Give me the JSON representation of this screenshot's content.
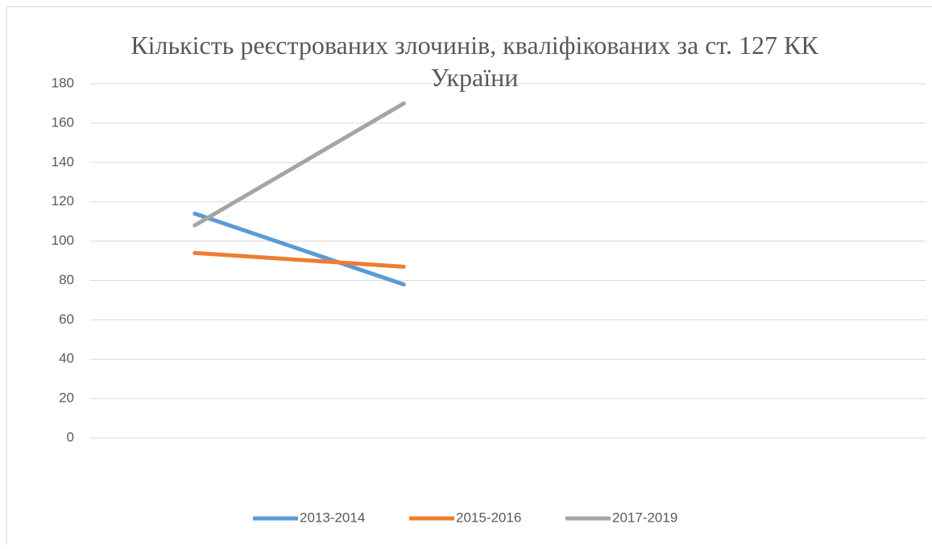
{
  "chart_data": {
    "type": "line",
    "title": "Кількість реєстрованих злочинів, кваліфікованих за ст. 127 КК України",
    "categories": [
      null,
      null,
      null,
      null
    ],
    "series": [
      {
        "name": "2013-2014",
        "color": "#5b9bd5",
        "values": [
          114,
          78,
          null,
          null
        ]
      },
      {
        "name": "2015-2016",
        "color": "#ed7d31",
        "values": [
          94,
          87,
          null,
          null
        ]
      },
      {
        "name": "2017-2019",
        "color": "#a5a5a5",
        "values": [
          108,
          170,
          null,
          null
        ]
      }
    ],
    "ylim": [
      0,
      180
    ],
    "yticks": [
      0,
      20,
      40,
      60,
      80,
      100,
      120,
      140,
      160,
      180
    ],
    "grid": true,
    "legend": "bottom"
  }
}
